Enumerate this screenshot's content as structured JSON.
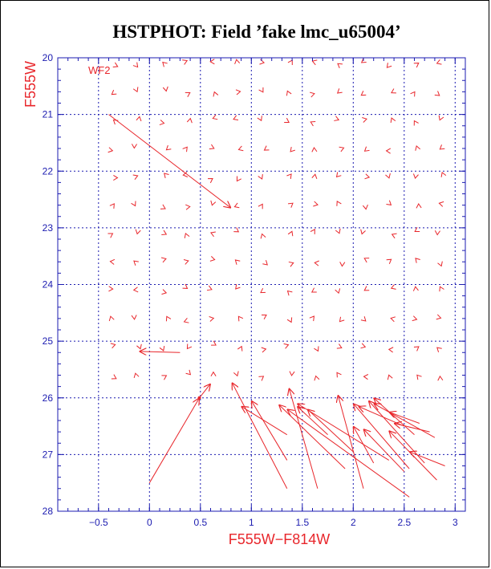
{
  "chart_data": {
    "type": "vector-field",
    "title": "HSTPHOT: Field ’fake lmc_u65004’",
    "xlabel": "F555W−F814W",
    "ylabel": "F555W",
    "panel_label": "WF2",
    "xlim": [
      -0.9,
      3.1
    ],
    "ylim": [
      28,
      20
    ],
    "x_ticks": [
      -0.5,
      0,
      0.5,
      1,
      1.5,
      2,
      2.5,
      3
    ],
    "y_ticks": [
      20,
      21,
      22,
      23,
      24,
      25,
      26,
      27,
      28
    ],
    "x_tick_labels": [
      "−0.5",
      "0",
      "0.5",
      "1",
      "1.5",
      "2",
      "2.5",
      "3"
    ],
    "y_tick_labels": [
      "20",
      "21",
      "22",
      "23",
      "24",
      "25",
      "26",
      "27",
      "28"
    ],
    "grid": true,
    "colors": {
      "axes": "#1b1bb0",
      "vectors": "#e8262b",
      "text": "#000000"
    },
    "vectors": [
      {
        "x0": -0.4,
        "y0": 21.0,
        "x1": 0.8,
        "y1": 22.65
      },
      {
        "x0": 0.0,
        "y0": 27.5,
        "x1": 0.49,
        "y1": 26.0
      },
      {
        "x0": 0.49,
        "y0": 26.0,
        "x1": 0.6,
        "y1": 25.75
      },
      {
        "x0": 1.35,
        "y0": 27.6,
        "x1": 0.81,
        "y1": 25.73
      },
      {
        "x0": 1.35,
        "y0": 26.65,
        "x1": 0.9,
        "y1": 26.15
      },
      {
        "x0": 1.35,
        "y0": 27.1,
        "x1": 1.0,
        "y1": 26.05
      },
      {
        "x0": 1.65,
        "y0": 27.6,
        "x1": 1.37,
        "y1": 25.83
      },
      {
        "x0": 1.75,
        "y0": 26.65,
        "x1": 1.45,
        "y1": 26.15
      },
      {
        "x0": 2.0,
        "y0": 26.95,
        "x1": 1.55,
        "y1": 26.2
      },
      {
        "x0": 1.92,
        "y0": 27.25,
        "x1": 1.27,
        "y1": 26.12
      },
      {
        "x0": 2.35,
        "y0": 27.1,
        "x1": 1.45,
        "y1": 26.1
      },
      {
        "x0": 2.1,
        "y0": 27.6,
        "x1": 1.85,
        "y1": 25.95
      },
      {
        "x0": 2.55,
        "y0": 27.75,
        "x1": 1.35,
        "y1": 26.2
      },
      {
        "x0": 2.55,
        "y0": 27.25,
        "x1": 2.0,
        "y1": 26.1
      },
      {
        "x0": 2.7,
        "y0": 27.15,
        "x1": 2.15,
        "y1": 26.05
      },
      {
        "x0": 2.8,
        "y0": 26.7,
        "x1": 2.2,
        "y1": 26.1
      },
      {
        "x0": 2.6,
        "y0": 26.65,
        "x1": 2.2,
        "y1": 26.0
      },
      {
        "x0": 2.5,
        "y0": 26.5,
        "x1": 2.05,
        "y1": 26.15
      },
      {
        "x0": 2.82,
        "y0": 27.45,
        "x1": 2.35,
        "y1": 26.58
      },
      {
        "x0": 2.9,
        "y0": 27.2,
        "x1": 2.55,
        "y1": 26.95
      },
      {
        "x0": 2.5,
        "y0": 27.3,
        "x1": 2.1,
        "y1": 26.55
      },
      {
        "x0": 2.2,
        "y0": 27.15,
        "x1": 2.0,
        "y1": 26.5
      },
      {
        "x0": 2.75,
        "y0": 26.6,
        "x1": 2.4,
        "y1": 26.45
      },
      {
        "x0": 2.65,
        "y0": 26.45,
        "x1": 2.35,
        "y1": 26.25
      },
      {
        "x0": 0.3,
        "y0": 25.2,
        "x1": -0.1,
        "y1": 25.18
      }
    ]
  }
}
